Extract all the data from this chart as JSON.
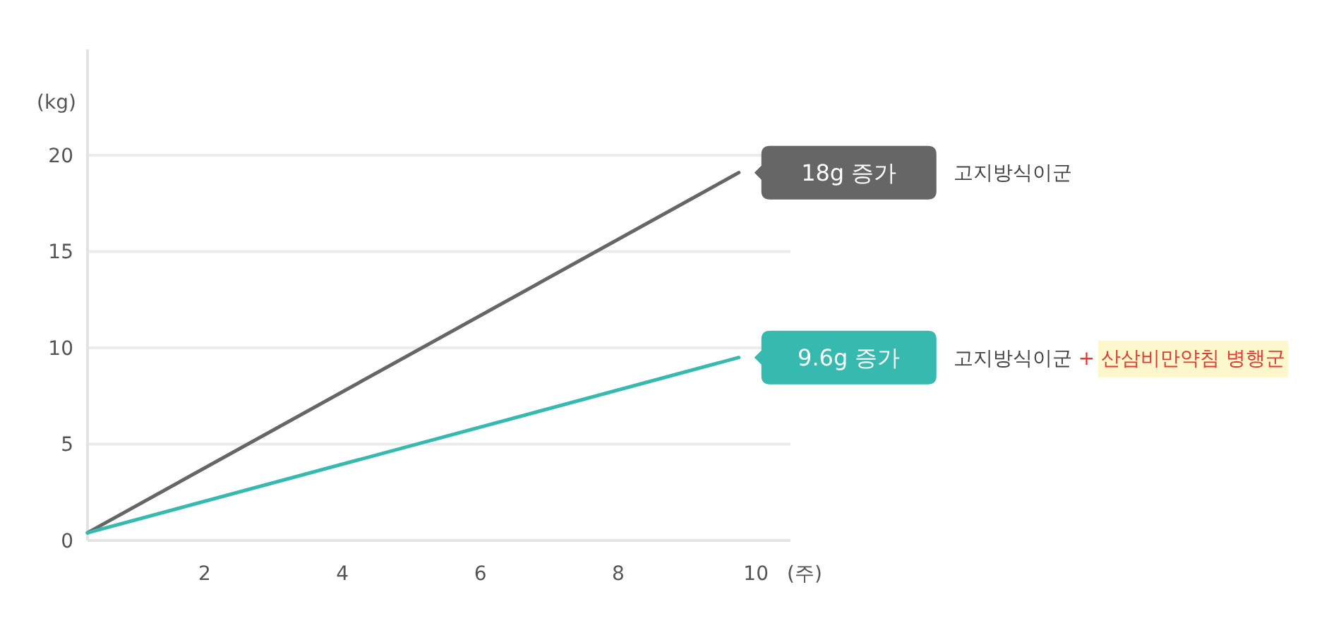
{
  "chart_data": {
    "type": "line",
    "xlabel": "(주)",
    "ylabel": "(kg)",
    "xlim": [
      0.3,
      10.5
    ],
    "ylim": [
      0,
      25.5
    ],
    "xticks": [
      2,
      4,
      6,
      8,
      10
    ],
    "yticks": [
      0,
      5,
      10,
      15,
      20
    ],
    "grid": "y",
    "marker": "none",
    "line_style": "solid",
    "x": [
      0.3,
      9.75
    ],
    "series": [
      {
        "name": "고지방식이군",
        "color": "#666666",
        "values": [
          0.4,
          19.1
        ]
      },
      {
        "name": "고지방식이군 + 산삼비만약침 병행군",
        "color": "#36b9ae",
        "values": [
          0.4,
          9.5
        ]
      }
    ],
    "annotations": [
      {
        "text": "18g 증가",
        "x": 9.75,
        "y": 19.1
      },
      {
        "text": "9.6g 증가",
        "x": 9.75,
        "y": 9.5
      }
    ]
  }
}
